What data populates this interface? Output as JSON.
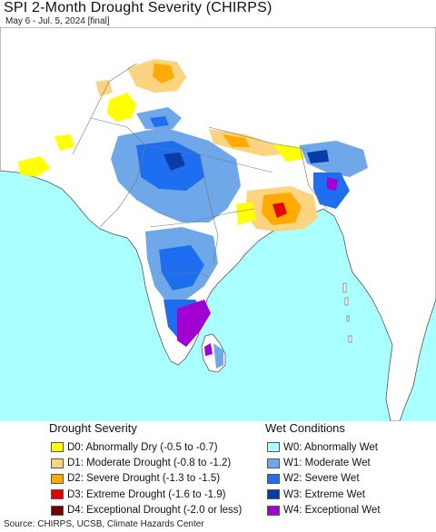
{
  "header": {
    "title": "SPI 2-Month Drought Severity (CHIRPS)",
    "subtitle": "May 6 - Jul. 5, 2024 [final]"
  },
  "legend": {
    "drought_title": "Drought Severity",
    "wet_title": "Wet Conditions",
    "drought_items": [
      {
        "label": "D0: Abnormally Dry (-0.5 to -0.7)",
        "color": "#ffff00"
      },
      {
        "label": "D1: Moderate Drought (-0.8 to -1.2)",
        "color": "#fcd37f"
      },
      {
        "label": "D2: Severe Drought (-1.3 to -1.5)",
        "color": "#ffaa00"
      },
      {
        "label": "D3: Extreme Drought (-1.6 to -1.9)",
        "color": "#e60000"
      },
      {
        "label": "D4: Exceptional Drought (-2.0 or less)",
        "color": "#730000"
      }
    ],
    "wet_items": [
      {
        "label": "W0: Abnormally Wet",
        "color": "#aaffff"
      },
      {
        "label": "W1: Moderate Wet",
        "color": "#6ea8e8"
      },
      {
        "label": "W2: Severe Wet",
        "color": "#1e6ef0"
      },
      {
        "label": "W3: Extreme Wet",
        "color": "#0a3ca8"
      },
      {
        "label": "W4: Exceptional Wet",
        "color": "#a000d2"
      }
    ]
  },
  "footer": {
    "source": "Source: CHIRPS, UCSB, Climate Hazards Center"
  },
  "map_colors": {
    "ocean": "#aaffff",
    "land": "#ffffff",
    "border": "#555555"
  }
}
